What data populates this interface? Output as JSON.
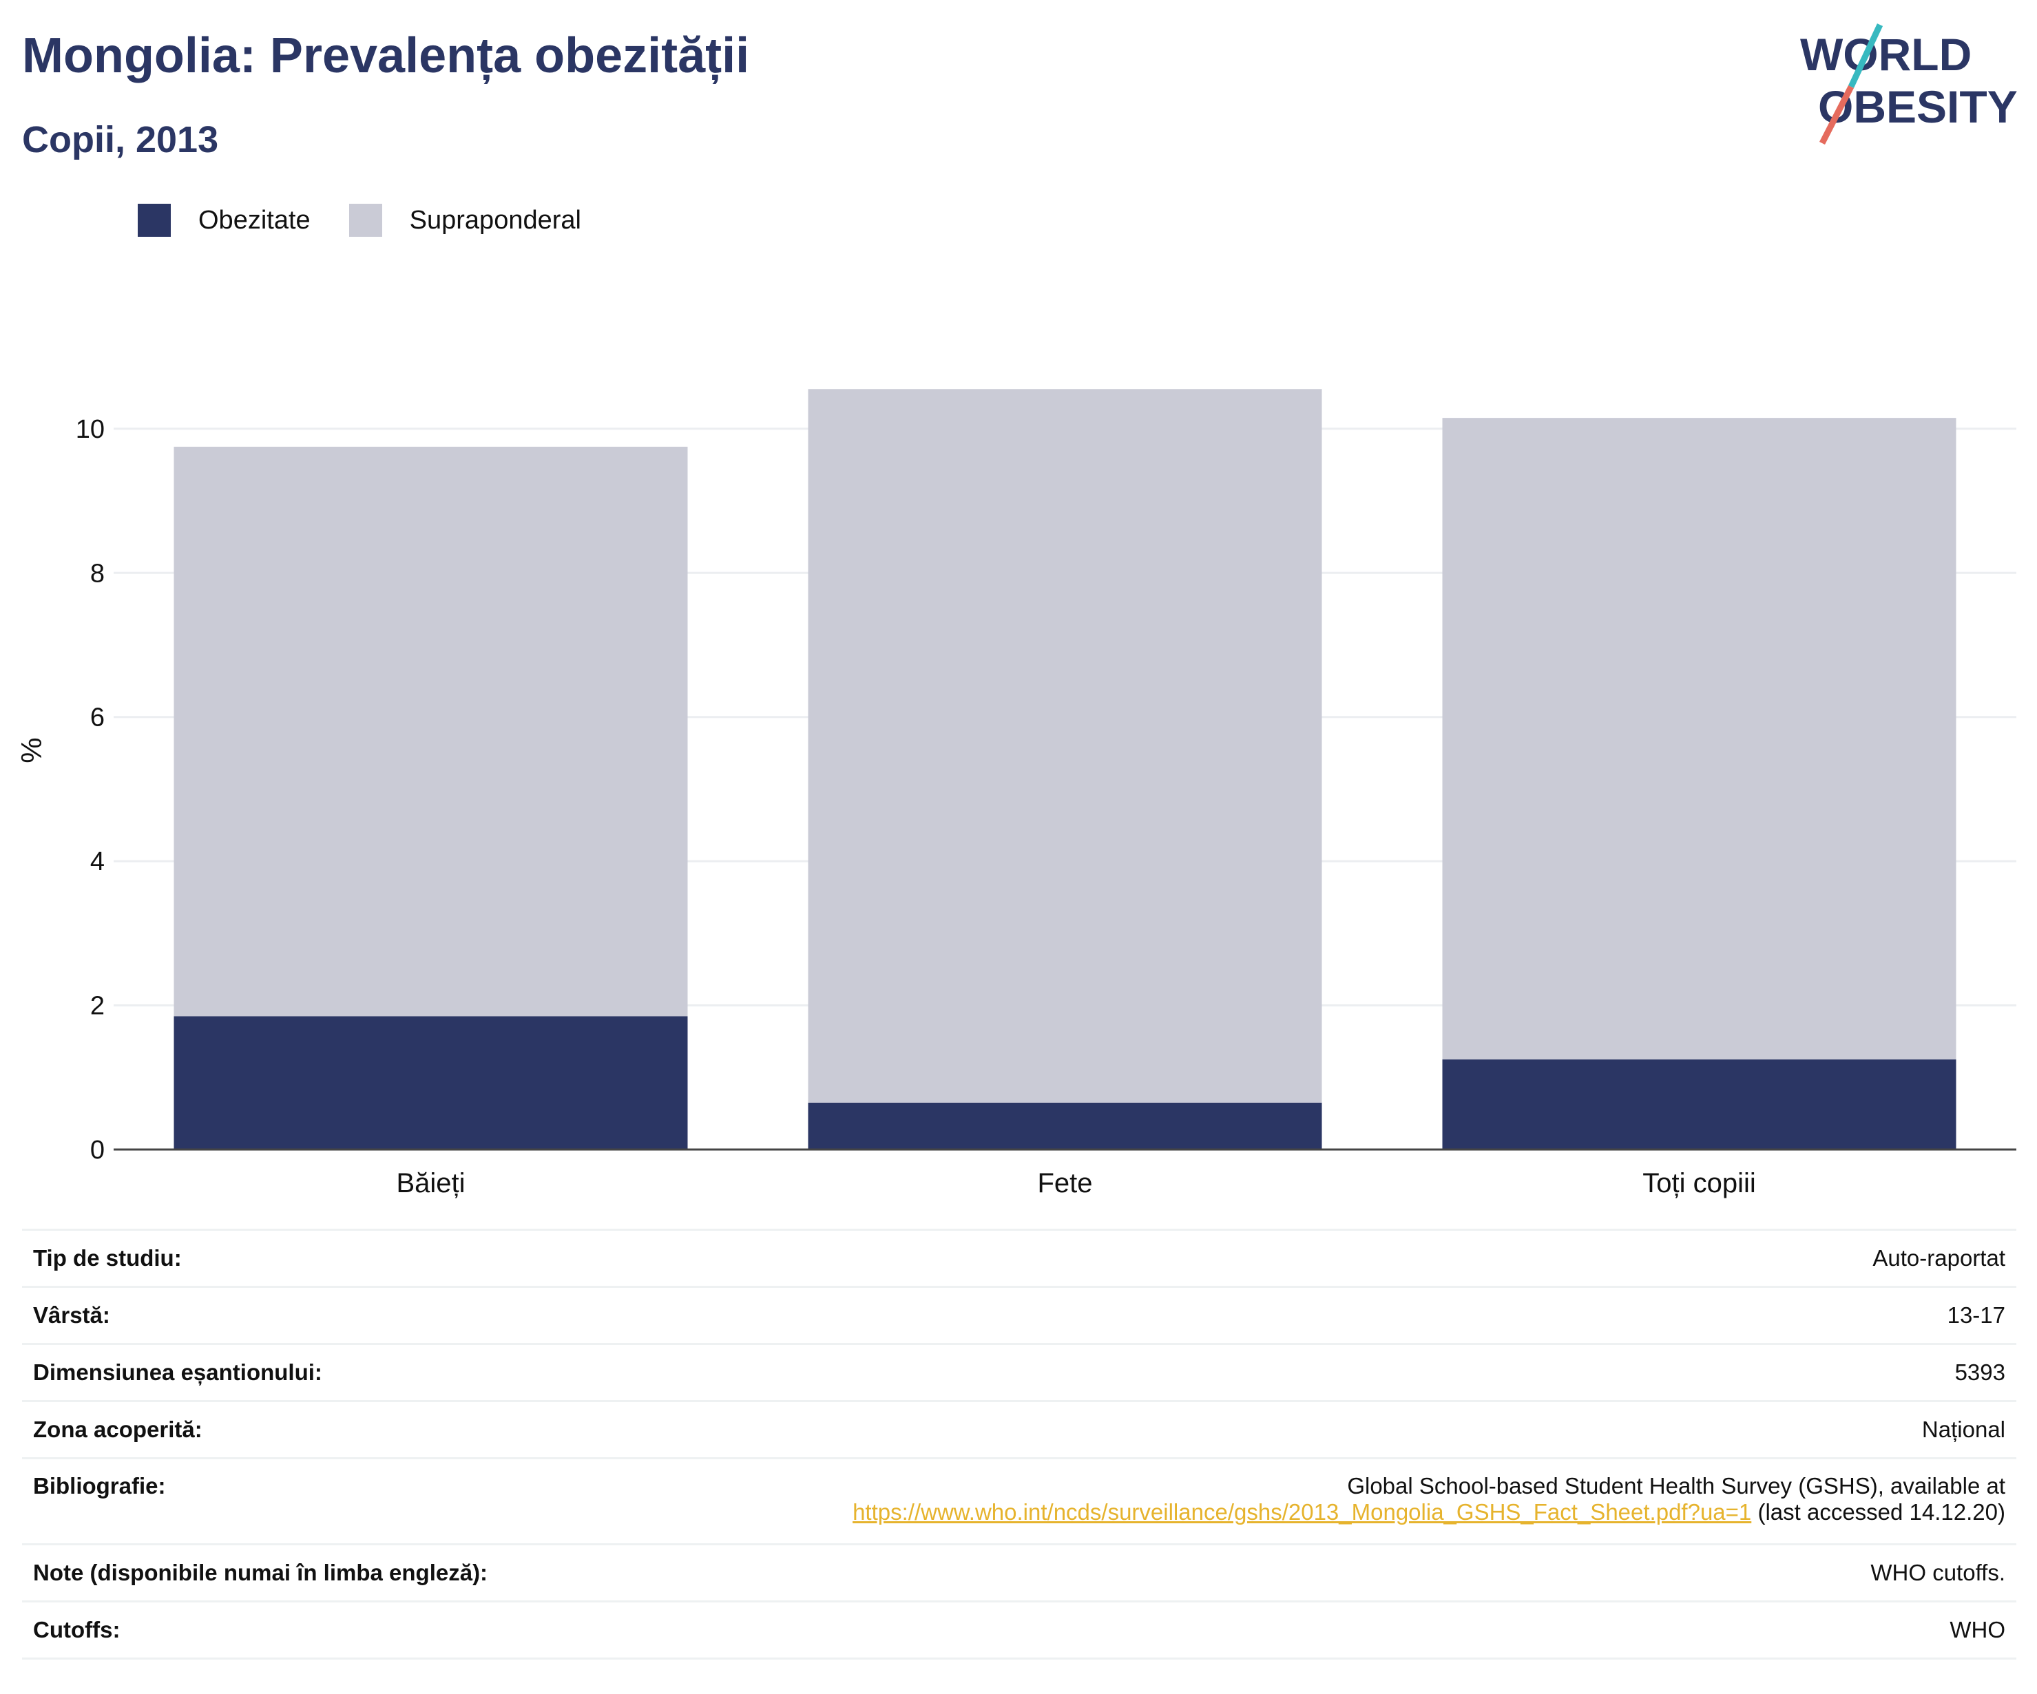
{
  "header": {
    "title": "Mongolia: Prevalența obezității",
    "subtitle": "Copii, 2013",
    "logo_text": "WORLD OBESITY"
  },
  "colors": {
    "title": "#2b3664",
    "obesity": "#2b3664",
    "overweight": "#cacbd6",
    "grid": "#eceef1",
    "link": "#e6b32d"
  },
  "chart_data": {
    "type": "bar",
    "stacked": true,
    "categories": [
      "Băieți",
      "Fete",
      "Toți copiii"
    ],
    "series": [
      {
        "name": "Obezitate",
        "color": "#2b3664",
        "values": [
          1.85,
          0.65,
          1.25
        ]
      },
      {
        "name": "Supraponderal",
        "color": "#cacbd6",
        "values": [
          7.9,
          9.9,
          8.9
        ]
      }
    ],
    "ylabel": "%",
    "ylim": [
      0,
      10.6
    ],
    "yticks": [
      0,
      2,
      4,
      6,
      8,
      10
    ],
    "grid": true,
    "legend_position": "top-left"
  },
  "info": {
    "rows": [
      {
        "label": "Tip de studiu:",
        "value": "Auto-raportat"
      },
      {
        "label": "Vârstă:",
        "value": "13-17"
      },
      {
        "label": "Dimensiunea eșantionului:",
        "value": "5393"
      },
      {
        "label": "Zona acoperită:",
        "value": "Național"
      }
    ],
    "bibliography": {
      "label": "Bibliografie:",
      "line1": "Global School-based Student Health Survey (GSHS), available at",
      "link": "https://www.who.int/ncds/surveillance/gshs/2013_Mongolia_GSHS_Fact_Sheet.pdf?ua=1",
      "suffix": " (last accessed 14.12.20)"
    },
    "notes": {
      "label": "Note (disponibile numai în limba engleză):",
      "value": "WHO cutoffs."
    },
    "cutoffs": {
      "label": "Cutoffs:",
      "value": "WHO"
    }
  }
}
